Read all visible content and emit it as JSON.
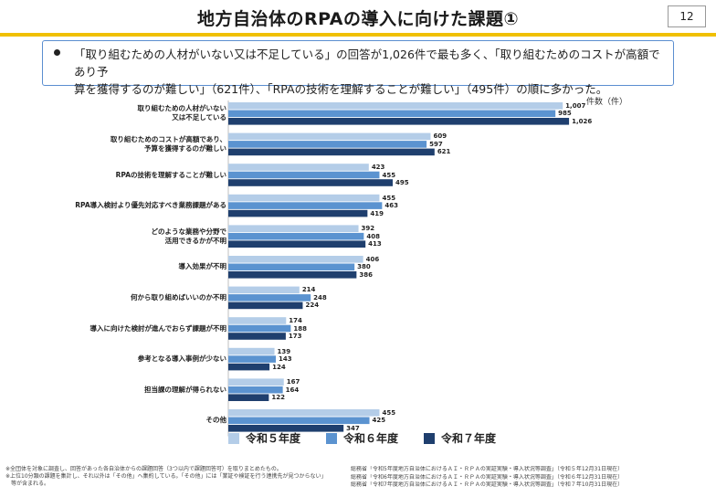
{
  "header": {
    "title": "地方自治体のRPAの導入に向けた課題①",
    "page_number": "12"
  },
  "summary": {
    "line1": "「取り組むための人材がいない又は不足している」の回答が1,026件で最も多く、「取り組むためのコストが高額であり予",
    "line2": "算を獲得するのが難しい」（621件）、「RPAの技術を理解することが難しい」（495件）の順に多かった。"
  },
  "chart_data": {
    "type": "bar",
    "orientation": "horizontal",
    "unit": "件数（件）",
    "xlim": [
      0,
      1100
    ],
    "grid": false,
    "legend_position": "bottom",
    "categories": [
      [
        "取り組むための人材がいない",
        "又は不足している"
      ],
      [
        "取り組むためのコストが高額であり、",
        "予算を獲得するのが難しい"
      ],
      [
        "RPAの技術を理解することが難しい"
      ],
      [
        "RPA導入検討より優先対応すべき業務課題がある"
      ],
      [
        "どのような業務や分野で",
        "活用できるかが不明"
      ],
      [
        "導入効果が不明"
      ],
      [
        "何から取り組めばいいのか不明"
      ],
      [
        "導入に向けた検討が進んでおらず課題が不明"
      ],
      [
        "参考となる導入事例が少ない"
      ],
      [
        "担当課の理解が得られない"
      ],
      [
        "その他"
      ]
    ],
    "series": [
      {
        "name": "令和５年度",
        "color": "#b4cde8",
        "values": [
          1007,
          609,
          423,
          455,
          392,
          406,
          214,
          174,
          139,
          167,
          455
        ]
      },
      {
        "name": "令和６年度",
        "color": "#5b93d0",
        "values": [
          985,
          597,
          455,
          463,
          408,
          380,
          248,
          188,
          143,
          164,
          425
        ]
      },
      {
        "name": "令和７年度",
        "color": "#1f3f6e",
        "values": [
          1026,
          621,
          495,
          419,
          413,
          386,
          224,
          173,
          124,
          122,
          347
        ]
      }
    ]
  },
  "footnote": {
    "line1": "※全団体を対象に調査し、回答があった各自治体からの課題回答（3つ以内で課題回答可）を取りまとめたもの。",
    "line2": "※上位10分類の課題を集計し、それ以外は「その他」へ集約している。「その他」には「業証や検証を行う連携先が見つからない」",
    "line3": "　等が含まれる。"
  },
  "sources": [
    "総務省「令和5年度地方自治体におけるＡＩ・ＲＰＡの実証実験・導入状況等調査」（令和５年12月31日現在）",
    "総務省「令和6年度地方自治体におけるＡＩ・ＲＰＡの実証実験・導入状況等調査」（令和６年12月31日現在）",
    "総務省「令和7年度地方自治体におけるＡＩ・ＲＰＡの実証実験・導入状況等調査」（令和７年10月31日現在）"
  ]
}
